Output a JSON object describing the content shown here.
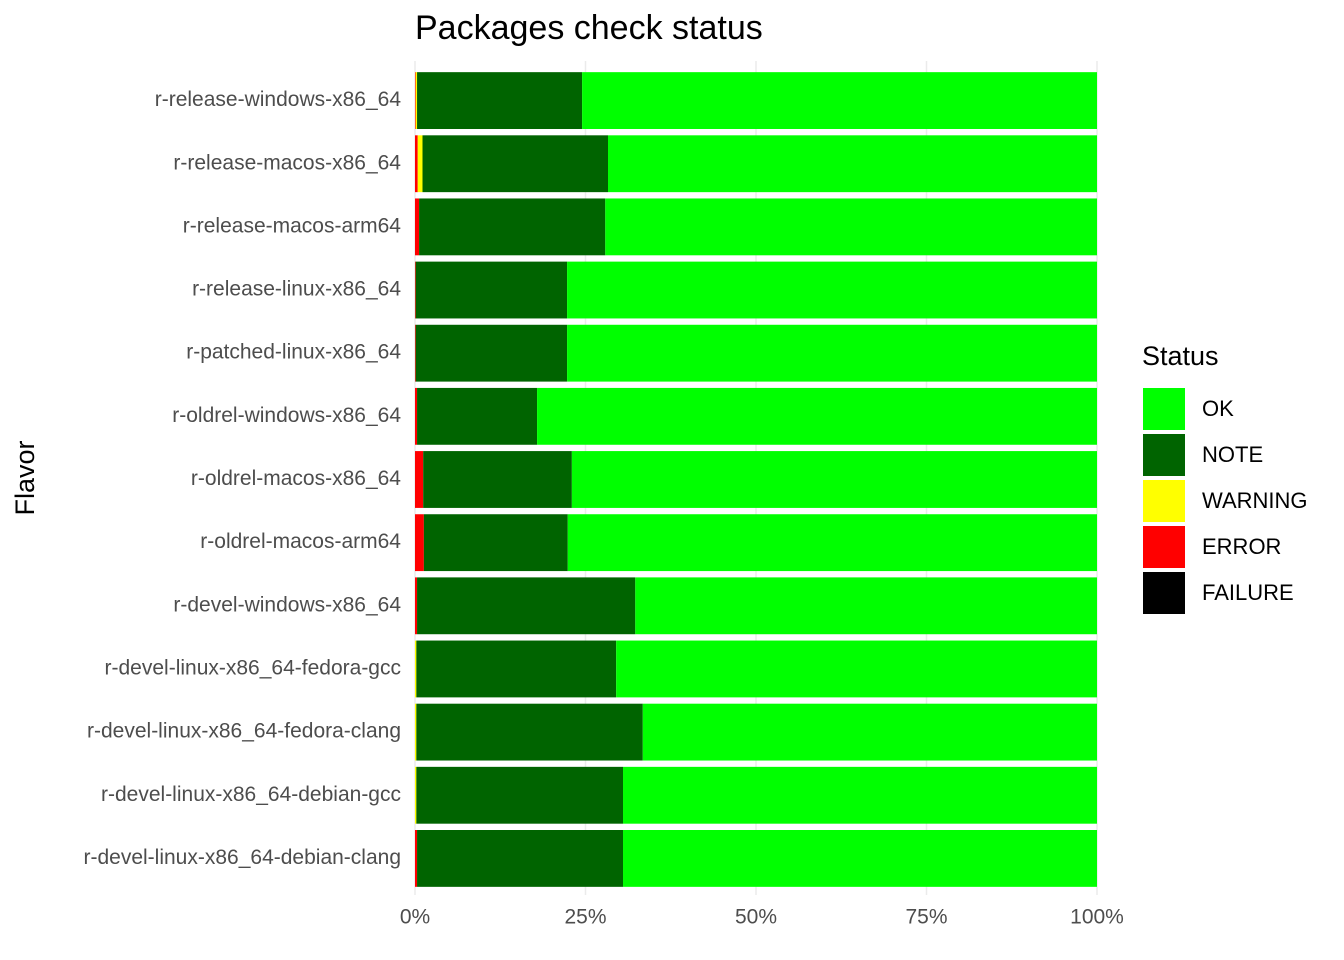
{
  "chart_data": {
    "type": "stacked_bar",
    "orientation": "horizontal",
    "title": "Packages check status",
    "y_label": "Flavor",
    "categories": [
      "r-release-windows-x86_64",
      "r-release-macos-x86_64",
      "r-release-macos-arm64",
      "r-release-linux-x86_64",
      "r-patched-linux-x86_64",
      "r-oldrel-windows-x86_64",
      "r-oldrel-macos-x86_64",
      "r-oldrel-macos-arm64",
      "r-devel-windows-x86_64",
      "r-devel-linux-x86_64-fedora-gcc",
      "r-devel-linux-x86_64-fedora-clang",
      "r-devel-linux-x86_64-debian-gcc",
      "r-devel-linux-x86_64-debian-clang"
    ],
    "legend_title": "Status",
    "legend": "right",
    "series": [
      {
        "name": "OK",
        "color": "#00ff00",
        "values": [
          75.5,
          71.7,
          72.1,
          77.7,
          77.7,
          82.1,
          77.0,
          77.6,
          67.7,
          70.5,
          66.6,
          69.5,
          69.5
        ]
      },
      {
        "name": "NOTE",
        "color": "#006400",
        "values": [
          24.2,
          27.2,
          27.3,
          22.2,
          22.2,
          17.6,
          21.8,
          21.1,
          32.0,
          29.3,
          33.2,
          30.3,
          30.2
        ]
      },
      {
        "name": "WARNING",
        "color": "#ffff00",
        "values": [
          0.2,
          0.7,
          0,
          0,
          0,
          0,
          0,
          0,
          0,
          0.2,
          0.2,
          0.2,
          0
        ]
      },
      {
        "name": "ERROR",
        "color": "#ff0000",
        "values": [
          0.1,
          0.4,
          0.6,
          0.1,
          0.1,
          0.3,
          1.2,
          1.3,
          0.3,
          0,
          0,
          0,
          0.3
        ]
      },
      {
        "name": "FAILURE",
        "color": "#000000",
        "values": [
          0,
          0,
          0,
          0,
          0,
          0,
          0,
          0,
          0,
          0,
          0,
          0,
          0
        ]
      }
    ],
    "xlim": [
      0,
      100
    ],
    "xticks": [
      {
        "value": 0,
        "label": "0%"
      },
      {
        "value": 25,
        "label": "25%"
      },
      {
        "value": 50,
        "label": "50%"
      },
      {
        "value": 75,
        "label": "75%"
      },
      {
        "value": 100,
        "label": "100%"
      }
    ],
    "grid": true
  }
}
